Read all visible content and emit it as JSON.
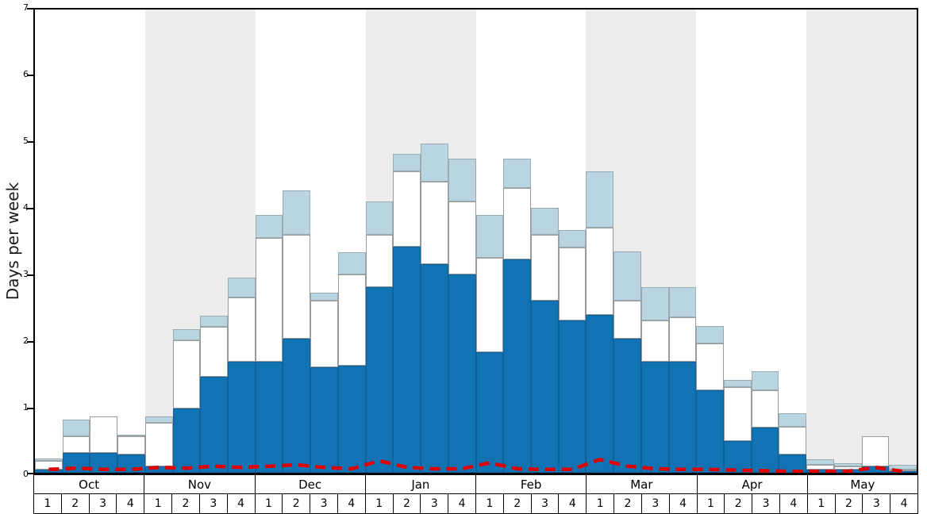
{
  "chart": {
    "ylabel": "Days per week",
    "band_color_odd": "#ececec",
    "band_color_even": "#ffffff",
    "axis_color": "#000000"
  },
  "chart_data": {
    "type": "bar",
    "title": "",
    "xlabel": "",
    "ylabel": "Days per week",
    "ylim": [
      0,
      7
    ],
    "yticks": [
      "0",
      "1",
      "2",
      "3",
      "4",
      "5",
      "6",
      "7"
    ],
    "grid": false,
    "legend": "none",
    "x_structure": {
      "months": [
        "Oct",
        "Nov",
        "Dec",
        "Jan",
        "Feb",
        "Mar",
        "Apr",
        "May"
      ],
      "weeks_per_month": 4,
      "week_labels": [
        "1",
        "2",
        "3",
        "4"
      ]
    },
    "stacked_series": [
      {
        "name": "dark-blue-days",
        "color": "#1173b4",
        "border": "#0e619a",
        "cumulative_tops": [
          0.05,
          0.3,
          0.3,
          0.28,
          0.1,
          0.97,
          1.45,
          1.68,
          1.68,
          2.02,
          1.6,
          1.62,
          2.8,
          3.42,
          3.15,
          3.0,
          1.82,
          3.22,
          2.6,
          2.3,
          2.38,
          2.02,
          1.68,
          1.68,
          1.25,
          0.48,
          0.68,
          0.28,
          0.05,
          0.05,
          0.1,
          0.02
        ]
      },
      {
        "name": "white-days",
        "color": "#ffffff",
        "border": "#9a9a9a",
        "cumulative_tops": [
          0.18,
          0.55,
          0.85,
          0.55,
          0.75,
          2.0,
          2.2,
          2.65,
          3.55,
          3.6,
          2.6,
          3.0,
          3.6,
          4.55,
          4.4,
          4.1,
          3.25,
          4.3,
          3.6,
          3.4,
          3.7,
          2.6,
          2.3,
          2.35,
          1.95,
          1.3,
          1.25,
          0.7,
          0.12,
          0.1,
          0.55,
          0.05
        ]
      },
      {
        "name": "light-blue-days",
        "color": "#b9d5e2",
        "border": "#9aabb4",
        "cumulative_tops": [
          0.22,
          0.8,
          0.85,
          0.57,
          0.85,
          2.17,
          2.37,
          2.95,
          3.9,
          4.27,
          2.72,
          3.33,
          4.1,
          4.82,
          4.97,
          4.75,
          3.9,
          4.75,
          4.0,
          3.67,
          4.55,
          3.35,
          2.8,
          2.8,
          2.22,
          1.4,
          1.53,
          0.9,
          0.2,
          0.15,
          0.55,
          0.12
        ]
      }
    ],
    "line_series": {
      "name": "red-dashed-line",
      "color": "#e00000",
      "style": "dashed",
      "values": [
        0.05,
        0.07,
        0.05,
        0.05,
        0.08,
        0.07,
        0.1,
        0.08,
        0.1,
        0.12,
        0.08,
        0.06,
        0.18,
        0.08,
        0.06,
        0.06,
        0.15,
        0.06,
        0.05,
        0.05,
        0.2,
        0.1,
        0.06,
        0.05,
        0.05,
        0.04,
        0.03,
        0.02,
        0.02,
        0.02,
        0.08,
        0.02
      ]
    }
  }
}
